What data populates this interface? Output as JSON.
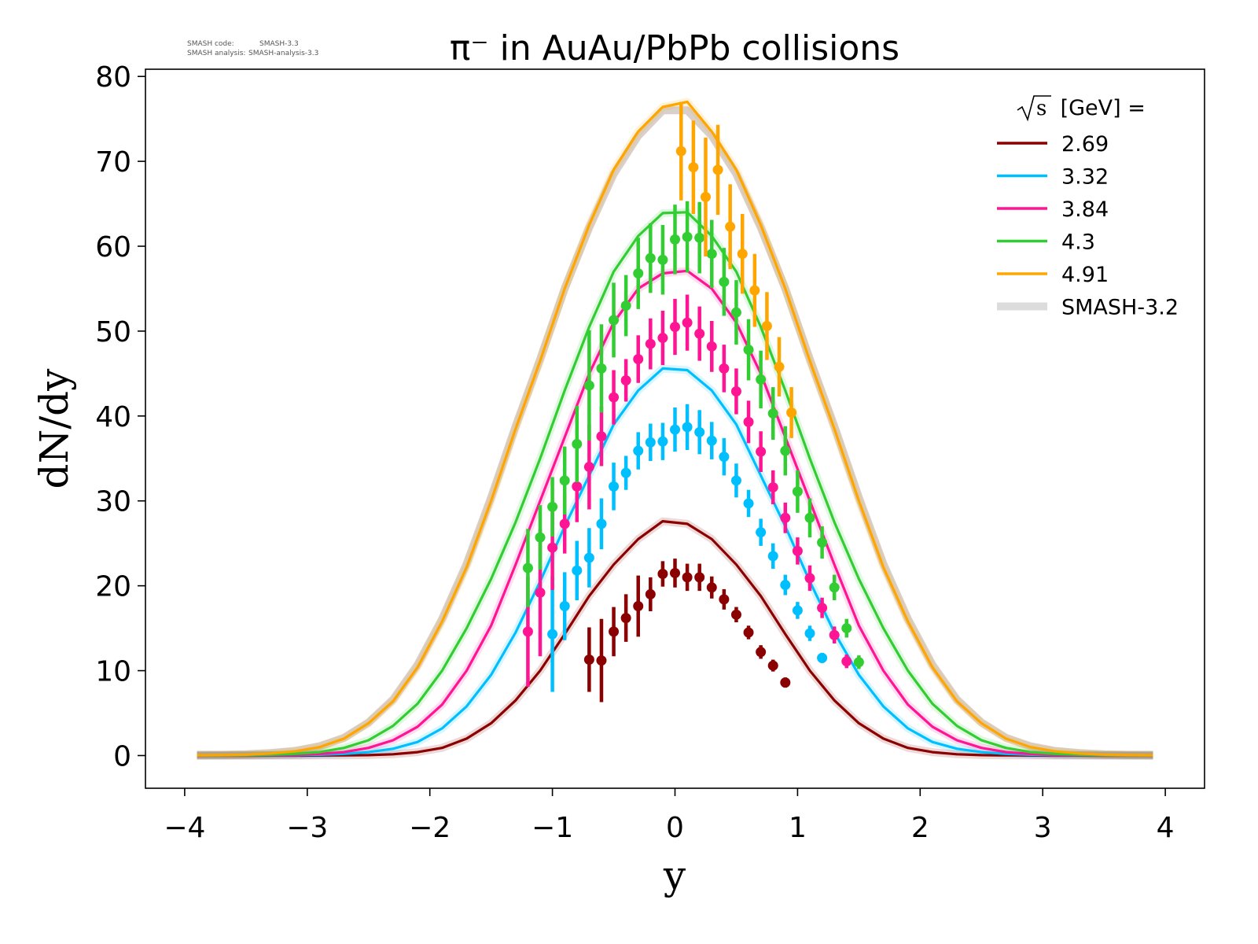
{
  "chart_data": {
    "type": "line",
    "title": "π⁻ in AuAu/PbPb collisions",
    "xlabel": "y",
    "ylabel": "dN/dy",
    "xlim": [
      -4.32,
      4.32
    ],
    "ylim": [
      -3.85,
      80.85
    ],
    "xticks": [
      -4,
      -3,
      -2,
      -1,
      0,
      1,
      2,
      3,
      4
    ],
    "xtick_labels": [
      "−4",
      "−3",
      "−2",
      "−1",
      "0",
      "1",
      "2",
      "3",
      "4"
    ],
    "yticks": [
      0,
      10,
      20,
      30,
      40,
      50,
      60,
      70,
      80
    ],
    "ytick_labels": [
      "0",
      "10",
      "20",
      "30",
      "40",
      "50",
      "60",
      "70",
      "80"
    ],
    "grid": false,
    "legend": {
      "placement": "top-right",
      "title_sqrt": "s",
      "title_rest": " [GeV] =",
      "entries": [
        "2.69",
        "3.32",
        "3.84",
        "4.3",
        "4.91",
        "SMASH-3.2"
      ]
    },
    "model_x": [
      -3.9,
      -3.7,
      -3.5,
      -3.3,
      -3.1,
      -2.9,
      -2.7,
      -2.5,
      -2.3,
      -2.1,
      -1.9,
      -1.7,
      -1.5,
      -1.3,
      -1.1,
      -0.9,
      -0.7,
      -0.5,
      -0.3,
      -0.1,
      0.1,
      0.3,
      0.5,
      0.7,
      0.9,
      1.1,
      1.3,
      1.5,
      1.7,
      1.9,
      2.1,
      2.3,
      2.5,
      2.7,
      2.9,
      3.1,
      3.3,
      3.5,
      3.7,
      3.9
    ],
    "reference_band": {
      "name": "SMASH-3.2",
      "color": "#dcdcdc",
      "values": [
        0.1,
        0.1,
        0.15,
        0.3,
        0.55,
        1.1,
        2.1,
        3.9,
        6.6,
        10.7,
        16.1,
        22.6,
        30.4,
        38.8,
        46.7,
        55,
        62.2,
        68.5,
        73,
        76,
        76,
        73,
        68.5,
        62.2,
        55,
        46.7,
        38.8,
        30.4,
        22.6,
        16.1,
        10.7,
        6.6,
        3.9,
        2.1,
        1.1,
        0.55,
        0.3,
        0.15,
        0.1,
        0.1
      ]
    },
    "series": [
      {
        "name": "2.69",
        "color": "#8b0000",
        "model": [
          0,
          0,
          0,
          0,
          0,
          0.01,
          0.02,
          0.05,
          0.15,
          0.4,
          0.9,
          2.0,
          3.8,
          6.5,
          10,
          14.3,
          18.8,
          22.5,
          25.5,
          27.6,
          27.3,
          25.5,
          22.5,
          18.8,
          14.3,
          10,
          6.5,
          3.8,
          2.0,
          0.9,
          0.4,
          0.15,
          0.05,
          0.02,
          0.01,
          0,
          0,
          0,
          0,
          0
        ],
        "data_x": [
          -0.7,
          -0.6,
          -0.5,
          -0.4,
          -0.3,
          -0.2,
          -0.1,
          0.0,
          0.1,
          0.2,
          0.3,
          0.4,
          0.5,
          0.6,
          0.7,
          0.8,
          0.9
        ],
        "data_y": [
          11.3,
          11.2,
          14.6,
          16.2,
          17.6,
          19.0,
          21.4,
          21.5,
          21.0,
          21.0,
          19.8,
          18.4,
          16.6,
          14.5,
          12.2,
          10.6,
          8.6
        ],
        "data_err": [
          3.8,
          4.9,
          2.9,
          2.8,
          3.6,
          2.0,
          1.5,
          1.7,
          1.6,
          1.6,
          1.3,
          1.2,
          0.9,
          0.8,
          0.8,
          0.7,
          0.6
        ]
      },
      {
        "name": "3.32",
        "color": "#00bfff",
        "model": [
          0,
          0,
          0.01,
          0.02,
          0.05,
          0.1,
          0.2,
          0.4,
          0.8,
          1.6,
          3.2,
          5.8,
          9.5,
          14.5,
          20.5,
          27,
          33,
          39,
          43,
          45.6,
          45.4,
          43,
          39,
          33,
          27,
          20.5,
          14.5,
          9.5,
          5.8,
          3.2,
          1.6,
          0.8,
          0.4,
          0.2,
          0.1,
          0.05,
          0.02,
          0.01,
          0,
          0
        ],
        "data_x": [
          -1.0,
          -0.9,
          -0.8,
          -0.7,
          -0.6,
          -0.5,
          -0.4,
          -0.3,
          -0.2,
          -0.1,
          0.0,
          0.1,
          0.2,
          0.3,
          0.4,
          0.5,
          0.6,
          0.7,
          0.8,
          0.9,
          1.0,
          1.1,
          1.2
        ],
        "data_y": [
          14.3,
          17.6,
          21.8,
          23.3,
          27.3,
          31.7,
          33.3,
          35.9,
          36.9,
          37.0,
          38.4,
          38.7,
          38.1,
          37.1,
          35.2,
          32.4,
          29.7,
          26.3,
          23.5,
          20.1,
          17.1,
          14.4,
          11.5
        ],
        "data_err": [
          6.8,
          4.0,
          3.5,
          3.5,
          3.0,
          2.8,
          2.0,
          2.2,
          2.2,
          2.2,
          2.6,
          2.7,
          2.6,
          2.2,
          2.2,
          2.0,
          1.6,
          1.6,
          1.5,
          1.2,
          1.0,
          0.9,
          0.6
        ]
      },
      {
        "name": "3.84",
        "color": "#ff1493",
        "model": [
          0,
          0.01,
          0.02,
          0.05,
          0.1,
          0.2,
          0.4,
          0.9,
          1.8,
          3.4,
          6,
          10,
          15.3,
          22.5,
          30,
          37.5,
          45,
          51,
          55,
          56.8,
          57.1,
          55,
          51,
          45,
          37.5,
          30,
          22.5,
          15.3,
          10,
          6,
          3.4,
          1.8,
          0.9,
          0.4,
          0.2,
          0.1,
          0.05,
          0.02,
          0.01,
          0
        ],
        "data_x": [
          -1.2,
          -1.1,
          -1.0,
          -0.9,
          -0.8,
          -0.7,
          -0.6,
          -0.5,
          -0.4,
          -0.3,
          -0.2,
          -0.1,
          0.0,
          0.1,
          0.2,
          0.3,
          0.4,
          0.5,
          0.6,
          0.7,
          0.8,
          0.9,
          1.0,
          1.1,
          1.2,
          1.3,
          1.4
        ],
        "data_y": [
          14.6,
          19.2,
          24.5,
          27.3,
          31.7,
          34.0,
          37.6,
          42.2,
          44.2,
          46.7,
          48.5,
          49.2,
          50.5,
          51.0,
          49.7,
          48.2,
          45.6,
          42.9,
          39.3,
          35.8,
          31.6,
          28.0,
          24.1,
          20.9,
          17.4,
          14.2,
          11.1
        ],
        "data_err": [
          6.5,
          7.5,
          5.0,
          3.5,
          4.2,
          5.0,
          3.5,
          3.2,
          2.5,
          2.8,
          3.0,
          3.2,
          3.3,
          3.3,
          3.2,
          3.0,
          2.8,
          2.7,
          2.5,
          2.4,
          2.0,
          1.8,
          1.6,
          1.5,
          1.2,
          1.0,
          0.8
        ]
      },
      {
        "name": "4.3",
        "color": "#32cd32",
        "model": [
          0.01,
          0.02,
          0.05,
          0.1,
          0.2,
          0.4,
          0.9,
          1.8,
          3.5,
          6.1,
          10,
          15,
          20.8,
          27.5,
          35,
          43,
          50.5,
          57,
          61.2,
          63.9,
          64,
          61.2,
          57,
          50.5,
          43,
          35,
          27.5,
          20.8,
          15,
          10,
          6.1,
          3.5,
          1.8,
          0.9,
          0.4,
          0.2,
          0.1,
          0.05,
          0.02,
          0.01
        ],
        "data_x": [
          -1.2,
          -1.1,
          -1.0,
          -0.9,
          -0.8,
          -0.7,
          -0.6,
          -0.5,
          -0.4,
          -0.3,
          -0.2,
          -0.1,
          0.0,
          0.1,
          0.2,
          0.3,
          0.4,
          0.5,
          0.6,
          0.7,
          0.8,
          0.9,
          1.0,
          1.1,
          1.2,
          1.3,
          1.4,
          1.5
        ],
        "data_y": [
          22.1,
          25.7,
          29.3,
          32.4,
          36.7,
          43.6,
          45.6,
          51.3,
          53.0,
          56.8,
          58.6,
          58.4,
          60.8,
          61.1,
          61.0,
          59.1,
          55.8,
          52.2,
          47.8,
          44.3,
          40.3,
          35.9,
          31.1,
          28.0,
          25.1,
          19.8,
          15.0,
          11.0
        ],
        "data_err": [
          4.6,
          3.8,
          3.5,
          4.0,
          4.5,
          6.5,
          5.2,
          4.4,
          3.6,
          4.2,
          4.1,
          4.1,
          4.1,
          4.2,
          4.2,
          4.0,
          4.0,
          3.8,
          3.6,
          3.4,
          3.1,
          2.9,
          2.5,
          2.3,
          1.9,
          1.5,
          1.1,
          0.8
        ]
      },
      {
        "name": "4.91",
        "color": "#ffa500",
        "model": [
          0.02,
          0.05,
          0.1,
          0.25,
          0.5,
          1.0,
          2.0,
          3.8,
          6.4,
          10.4,
          15.8,
          22.2,
          30,
          38.5,
          46.5,
          55,
          62.5,
          69,
          73.5,
          76.4,
          77.0,
          73.5,
          69,
          62.5,
          55,
          46.5,
          38.5,
          30,
          22.2,
          15.8,
          10.4,
          6.4,
          3.8,
          2.0,
          1.0,
          0.5,
          0.25,
          0.1,
          0.05,
          0.02
        ],
        "data_x": [
          0.05,
          0.15,
          0.25,
          0.35,
          0.45,
          0.55,
          0.65,
          0.75,
          0.85,
          0.95
        ],
        "data_y": [
          71.2,
          69.3,
          65.8,
          69.0,
          62.3,
          59.1,
          54.8,
          50.6,
          45.8,
          40.4
        ],
        "data_err": [
          5.8,
          5.5,
          7.0,
          5.3,
          5.0,
          4.7,
          4.3,
          4.0,
          3.5,
          3.0
        ]
      }
    ]
  },
  "version_info": {
    "code_label": "SMASH code:",
    "code_value": "SMASH-3.3",
    "analysis_label": "SMASH analysis:",
    "analysis_value": "SMASH-analysis-3.3"
  }
}
